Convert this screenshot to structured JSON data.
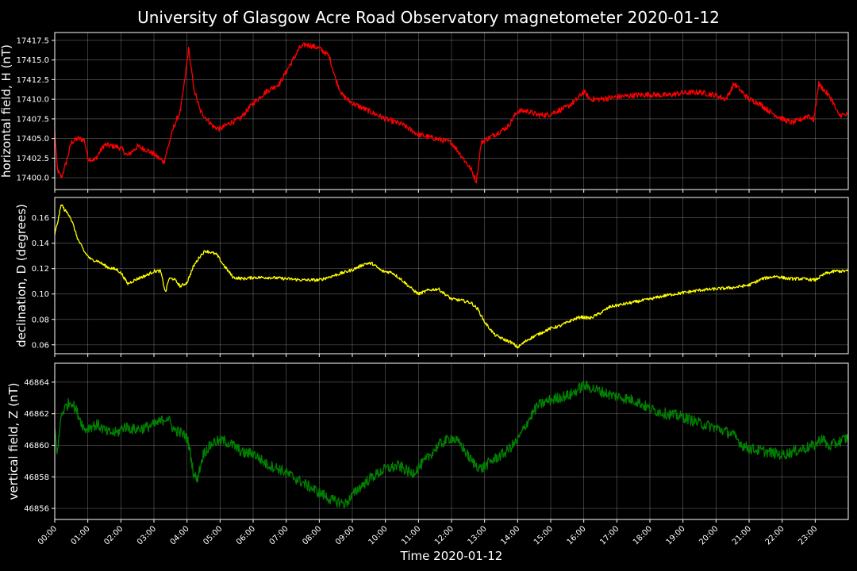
{
  "chart_data": {
    "type": "line",
    "title": "University of Glasgow Acre Road Observatory magnetometer 2020-01-12",
    "xlabel": "Time 2020-01-12",
    "x_range_hours": [
      0,
      24
    ],
    "x_ticks": [
      "00:00",
      "01:00",
      "02:00",
      "03:00",
      "04:00",
      "05:00",
      "06:00",
      "07:00",
      "08:00",
      "09:00",
      "10:00",
      "11:00",
      "12:00",
      "13:00",
      "14:00",
      "15:00",
      "16:00",
      "17:00",
      "18:00",
      "19:00",
      "20:00",
      "21:00",
      "22:00",
      "23:00"
    ],
    "grid": true,
    "panels": [
      {
        "ylabel": "horizontal field, H (nT)",
        "color": "#ff0000",
        "ylim": [
          17398.5,
          17418.5
        ],
        "y_ticks": [
          17400.0,
          17402.5,
          17405.0,
          17407.5,
          17410.0,
          17412.5,
          17415.0,
          17417.5
        ],
        "y_tick_labels": [
          "17400.0",
          "17402.5",
          "17405.0",
          "17407.5",
          "17410.0",
          "17412.5",
          "17415.0",
          "17417.5"
        ],
        "noise": 0.35,
        "series": {
          "x": [
            0,
            0.08,
            0.2,
            0.35,
            0.5,
            0.7,
            0.9,
            1.0,
            1.2,
            1.5,
            1.8,
            2.0,
            2.2,
            2.5,
            2.8,
            3.0,
            3.3,
            3.4,
            3.6,
            3.8,
            3.95,
            4.05,
            4.2,
            4.4,
            4.6,
            4.8,
            5.0,
            5.3,
            5.6,
            6.0,
            6.4,
            6.8,
            7.0,
            7.2,
            7.4,
            7.6,
            8.0,
            8.3,
            8.5,
            8.7,
            9.0,
            9.5,
            10.0,
            10.5,
            11.0,
            11.5,
            12.0,
            12.3,
            12.6,
            12.75,
            12.9,
            13.3,
            13.7,
            14.0,
            14.3,
            14.6,
            14.9,
            15.2,
            15.5,
            15.8,
            16.0,
            16.2,
            16.5,
            17.0,
            17.5,
            18.0,
            18.5,
            19.0,
            19.5,
            20.0,
            20.3,
            20.55,
            20.7,
            21.0,
            21.3,
            21.6,
            22.0,
            22.3,
            22.6,
            22.8,
            22.95,
            23.0,
            23.1,
            23.3,
            23.5,
            23.7,
            24.0
          ],
          "y": [
            17405.8,
            17401.0,
            17400.0,
            17402.0,
            17404.5,
            17405.0,
            17404.8,
            17402.5,
            17402.2,
            17404.2,
            17404.0,
            17403.8,
            17402.8,
            17404.0,
            17403.5,
            17403.0,
            17402.0,
            17403.5,
            17406.5,
            17408.5,
            17413.0,
            17416.5,
            17411.5,
            17408.5,
            17407.5,
            17406.5,
            17406.2,
            17407.0,
            17407.5,
            17409.5,
            17411.0,
            17412.0,
            17413.5,
            17415.0,
            17416.5,
            17417.0,
            17416.5,
            17415.5,
            17412.5,
            17410.5,
            17409.5,
            17408.5,
            17407.5,
            17406.8,
            17405.5,
            17405.0,
            17404.5,
            17402.8,
            17401.0,
            17399.5,
            17404.5,
            17405.5,
            17406.5,
            17408.5,
            17408.5,
            17408.0,
            17408.0,
            17408.5,
            17409.0,
            17410.0,
            17411.0,
            17410.0,
            17410.0,
            17410.3,
            17410.5,
            17410.6,
            17410.5,
            17410.8,
            17410.9,
            17410.5,
            17410.0,
            17412.0,
            17411.3,
            17410.0,
            17409.5,
            17408.5,
            17407.5,
            17407.0,
            17407.5,
            17408.0,
            17407.3,
            17408.5,
            17412.0,
            17411.0,
            17410.0,
            17408.0,
            17408.0
          ]
        }
      },
      {
        "ylabel": "declination, D (degrees)",
        "color": "#ffff00",
        "ylim": [
          0.053,
          0.176
        ],
        "y_ticks": [
          0.06,
          0.08,
          0.1,
          0.12,
          0.14,
          0.16
        ],
        "y_tick_labels": [
          "0.06",
          "0.08",
          "0.10",
          "0.12",
          "0.14",
          "0.16"
        ],
        "noise": 0.0012,
        "series": {
          "x": [
            0,
            0.1,
            0.2,
            0.3,
            0.45,
            0.55,
            0.7,
            0.9,
            1.1,
            1.3,
            1.6,
            1.9,
            2.05,
            2.2,
            2.5,
            2.8,
            3.0,
            3.2,
            3.35,
            3.45,
            3.6,
            3.8,
            4.0,
            4.2,
            4.4,
            4.55,
            4.7,
            4.9,
            5.1,
            5.4,
            5.7,
            6.0,
            6.5,
            7.0,
            7.5,
            8.0,
            8.5,
            9.0,
            9.4,
            9.6,
            9.9,
            10.2,
            10.5,
            10.8,
            11.0,
            11.3,
            11.6,
            12.0,
            12.3,
            12.6,
            12.8,
            13.0,
            13.3,
            13.6,
            13.8,
            14.0,
            14.3,
            14.6,
            15.0,
            15.3,
            15.6,
            15.9,
            16.2,
            16.5,
            16.8,
            17.2,
            17.6,
            18.0,
            18.5,
            19.0,
            19.5,
            20.0,
            20.5,
            21.0,
            21.4,
            21.8,
            22.2,
            22.6,
            23.0,
            23.3,
            23.6,
            24.0
          ],
          "y": [
            0.147,
            0.158,
            0.171,
            0.166,
            0.162,
            0.155,
            0.143,
            0.133,
            0.127,
            0.126,
            0.121,
            0.119,
            0.115,
            0.108,
            0.112,
            0.115,
            0.118,
            0.118,
            0.101,
            0.112,
            0.112,
            0.106,
            0.109,
            0.122,
            0.13,
            0.134,
            0.133,
            0.131,
            0.123,
            0.113,
            0.112,
            0.113,
            0.113,
            0.112,
            0.111,
            0.111,
            0.115,
            0.119,
            0.124,
            0.124,
            0.118,
            0.117,
            0.111,
            0.104,
            0.1,
            0.103,
            0.104,
            0.096,
            0.095,
            0.093,
            0.088,
            0.078,
            0.068,
            0.064,
            0.062,
            0.058,
            0.064,
            0.068,
            0.073,
            0.075,
            0.079,
            0.082,
            0.081,
            0.085,
            0.09,
            0.092,
            0.094,
            0.096,
            0.099,
            0.101,
            0.103,
            0.104,
            0.105,
            0.107,
            0.112,
            0.114,
            0.112,
            0.112,
            0.111,
            0.116,
            0.118,
            0.118
          ]
        }
      },
      {
        "ylabel": "vertical field, Z (nT)",
        "color": "#008000",
        "ylim": [
          46855.3,
          46865.2
        ],
        "y_ticks": [
          46856,
          46858,
          46860,
          46862,
          46864
        ],
        "y_tick_labels": [
          "46856",
          "46858",
          "46860",
          "46862",
          "46864"
        ],
        "noise": 0.35,
        "series": {
          "x": [
            0,
            0.08,
            0.2,
            0.35,
            0.5,
            0.7,
            0.9,
            1.1,
            1.3,
            1.6,
            1.9,
            2.1,
            2.4,
            2.7,
            3.0,
            3.2,
            3.4,
            3.6,
            3.8,
            4.0,
            4.1,
            4.2,
            4.3,
            4.5,
            4.8,
            5.1,
            5.4,
            5.7,
            6.0,
            6.4,
            6.8,
            7.2,
            7.6,
            8.0,
            8.4,
            8.8,
            9.2,
            9.6,
            10.0,
            10.4,
            10.8,
            11.2,
            11.6,
            12.0,
            12.3,
            12.6,
            12.9,
            13.2,
            13.6,
            14.0,
            14.3,
            14.6,
            14.9,
            15.2,
            15.6,
            16.0,
            16.4,
            16.8,
            17.2,
            17.6,
            18.0,
            18.5,
            19.0,
            19.5,
            20.0,
            20.5,
            20.8,
            21.0,
            21.5,
            22.0,
            22.5,
            23.0,
            23.2,
            23.4,
            23.7,
            24.0
          ],
          "y": [
            46861.0,
            46859.5,
            46862.0,
            46862.5,
            46862.8,
            46862.0,
            46861.0,
            46861.2,
            46861.3,
            46860.8,
            46860.8,
            46861.2,
            46861.0,
            46861.1,
            46861.3,
            46861.5,
            46861.8,
            46861.0,
            46860.8,
            46860.5,
            46859.5,
            46858.2,
            46857.8,
            46859.5,
            46860.2,
            46860.3,
            46860.0,
            46859.5,
            46859.5,
            46858.8,
            46858.5,
            46858.0,
            46857.5,
            46857.0,
            46856.5,
            46856.3,
            46857.3,
            46858.0,
            46858.5,
            46858.7,
            46858.2,
            46859.0,
            46860.0,
            46860.5,
            46860.0,
            46859.0,
            46858.5,
            46859.0,
            46859.5,
            46860.3,
            46861.5,
            46862.5,
            46862.8,
            46863.0,
            46863.2,
            46863.8,
            46863.5,
            46863.2,
            46863.0,
            46862.8,
            46862.3,
            46862.0,
            46861.8,
            46861.4,
            46861.1,
            46860.7,
            46860.0,
            46859.8,
            46859.6,
            46859.4,
            46859.7,
            46860.0,
            46860.5,
            46859.9,
            46860.2,
            46860.5
          ]
        }
      }
    ]
  }
}
